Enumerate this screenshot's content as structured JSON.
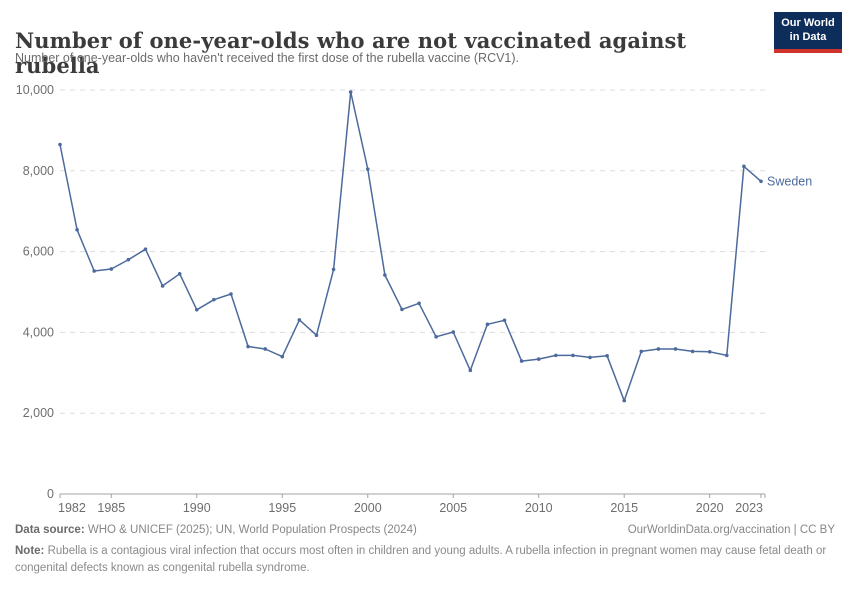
{
  "header": {
    "title": "Number of one-year-olds who are not vaccinated against rubella",
    "subtitle": "Number of one-year-olds who haven't received the first dose of the rubella vaccine (RCV1).",
    "logo": {
      "line1": "Our World",
      "line2": "in Data",
      "bg": "#0d2e5a",
      "accent": "#cf342c"
    }
  },
  "chart_data": {
    "type": "line",
    "title": "Number of one-year-olds who are not vaccinated against rubella",
    "xlabel": "",
    "ylabel": "",
    "ylim": [
      0,
      10000
    ],
    "xlim": [
      1982,
      2023
    ],
    "yticks": [
      0,
      2000,
      4000,
      6000,
      8000,
      10000
    ],
    "xticks": [
      1982,
      1985,
      1990,
      1995,
      2000,
      2005,
      2010,
      2015,
      2020,
      2023
    ],
    "grid": true,
    "grid_style": "dashed",
    "legend_position": "end-of-line",
    "line_color": "#4C6A9C",
    "axis_color": "#a3a3a3",
    "grid_color": "#dcdcdc",
    "tick_label_color": "#6e6e6e",
    "series": [
      {
        "name": "Sweden",
        "x": [
          1982,
          1983,
          1984,
          1985,
          1986,
          1987,
          1988,
          1989,
          1990,
          1991,
          1992,
          1993,
          1994,
          1995,
          1996,
          1997,
          1998,
          1999,
          2000,
          2001,
          2002,
          2003,
          2004,
          2005,
          2006,
          2007,
          2008,
          2009,
          2010,
          2011,
          2012,
          2013,
          2014,
          2015,
          2016,
          2017,
          2018,
          2019,
          2020,
          2021,
          2022,
          2023
        ],
        "values": [
          8650,
          6540,
          5520,
          5570,
          5800,
          6060,
          5150,
          5450,
          4560,
          4810,
          4950,
          3650,
          3590,
          3400,
          4310,
          3930,
          5560,
          9950,
          8040,
          5420,
          4570,
          4720,
          3890,
          4010,
          3060,
          4200,
          4300,
          3290,
          3340,
          3430,
          3430,
          3380,
          3420,
          2310,
          3530,
          3590,
          3590,
          3530,
          3520,
          3430,
          8110,
          7740
        ]
      }
    ]
  },
  "footer": {
    "source_label": "Data source:",
    "source_text": "WHO & UNICEF (2025); UN, World Population Prospects (2024)",
    "credit": "OurWorldinData.org/vaccination | CC BY",
    "note_label": "Note:",
    "note_text": "Rubella is a contagious viral infection that occurs most often in children and young adults. A rubella infection in pregnant women may cause fetal death or congenital defects known as congenital rubella syndrome."
  }
}
